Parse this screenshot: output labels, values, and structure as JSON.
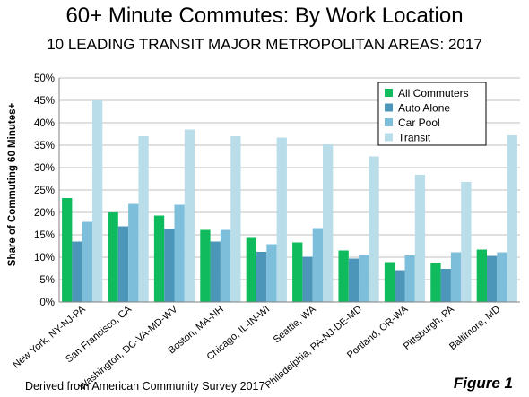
{
  "page": {
    "source_note": "Derived from American Community Survey 2017",
    "figure_label": "Figure 1"
  },
  "chart_data": {
    "type": "bar",
    "title": "60+ Minute Commutes: By Work Location",
    "subtitle": "10 LEADING TRANSIT MAJOR METROPOLITAN AREAS: 2017",
    "xlabel": "",
    "ylabel": "Share of Commuting 60 Minutes+",
    "ylim": [
      0,
      50
    ],
    "y_ticks": [
      "0%",
      "5%",
      "10%",
      "15%",
      "20%",
      "25%",
      "30%",
      "35%",
      "40%",
      "45%",
      "50%"
    ],
    "grid": true,
    "legend_position": "top-right",
    "categories": [
      "New York, NY-NJ-PA",
      "San Francisco, CA",
      "Washington, DC-VA-MD-WV",
      "Boston, MA-NH",
      "Chicago, IL-IN-WI",
      "Seattle, WA",
      "Philadelphia, PA-NJ-DE-MD",
      "Portland, OR-WA",
      "Pittsburgh, PA",
      "Baltimore, MD"
    ],
    "series": [
      {
        "name": "All Commuters",
        "color": "#0fbb5c",
        "values": [
          23.2,
          20.0,
          19.3,
          16.1,
          14.3,
          13.3,
          11.5,
          8.9,
          8.8,
          11.7
        ]
      },
      {
        "name": "Auto Alone",
        "color": "#4c97b9",
        "values": [
          13.5,
          16.9,
          16.3,
          13.5,
          11.2,
          10.1,
          9.7,
          7.1,
          7.4,
          10.3
        ]
      },
      {
        "name": "Car Pool",
        "color": "#7dbfdb",
        "values": [
          17.9,
          21.9,
          21.7,
          16.1,
          12.9,
          16.5,
          10.6,
          10.4,
          11.1,
          11.1
        ]
      },
      {
        "name": "Transit",
        "color": "#b9dde9",
        "values": [
          45.0,
          37.0,
          38.5,
          37.0,
          36.7,
          35.2,
          32.5,
          28.4,
          26.8,
          37.2
        ]
      }
    ]
  }
}
